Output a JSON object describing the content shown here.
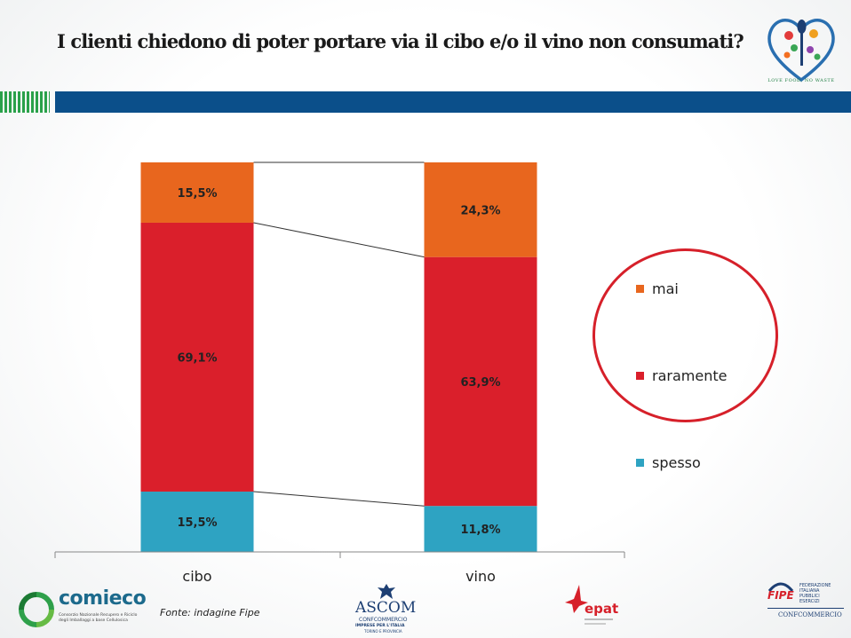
{
  "page": {
    "title": "I clienti chiedono di poter portare via il cibo e/o il vino non consumati?",
    "source": "Fonte: indagine Fipe",
    "logos": {
      "top_tagline": "LOVE FOOD, NO WASTE",
      "comieco_name": "comieco",
      "comieco_subtitle_1": "Consorzio Nazionale Recupero e Riciclo",
      "comieco_subtitle_2": "degli Imballaggi a base Cellulosica",
      "ascom_name": "ASCOM",
      "ascom_sub": "CONFCOMMERCIO",
      "ascom_sub2": "IMPRESE PER L'ITALIA",
      "ascom_sub3": "TORINO E PROVINCIA",
      "epat_name": "epat",
      "fipe_name": "FIPE",
      "fipe_line1": "FEDERAZIONE",
      "fipe_line2": "ITALIANA",
      "fipe_line3": "PUBBLICI",
      "fipe_line4": "ESERCIZI",
      "fipe_confcommercio": "CONFCOMMERCIO"
    }
  },
  "chart_data": {
    "type": "bar",
    "stacked": true,
    "percent_stacked": true,
    "categories": [
      "cibo",
      "vino"
    ],
    "series": [
      {
        "name": "spesso",
        "values": [
          15.5,
          11.8
        ],
        "labels": [
          "15,5%",
          "11,8%"
        ],
        "color": "#2ea3c2"
      },
      {
        "name": "raramente",
        "values": [
          69.1,
          63.9
        ],
        "labels": [
          "69,1%",
          "63,9%"
        ],
        "color": "#da1f2b"
      },
      {
        "name": "mai",
        "values": [
          15.5,
          24.3
        ],
        "labels": [
          "15,5%",
          "24,3%"
        ],
        "color": "#e8661e"
      }
    ],
    "legend_order": [
      "mai",
      "raramente",
      "spesso"
    ],
    "legend_position": "right",
    "series_lines": true,
    "grid": false,
    "ylim": [
      0,
      100
    ]
  }
}
